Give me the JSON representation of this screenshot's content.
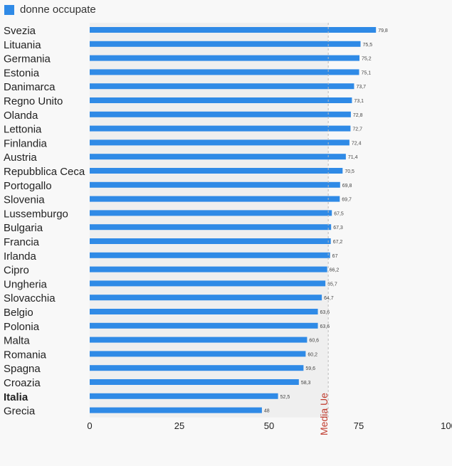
{
  "chart_data": {
    "type": "bar",
    "orientation": "horizontal",
    "series": [
      {
        "name": "donne occupate",
        "color": "#2f8ae6",
        "values": [
          79.8,
          75.5,
          75.2,
          75.1,
          73.7,
          73.1,
          72.8,
          72.7,
          72.4,
          71.4,
          70.5,
          69.8,
          69.7,
          67.5,
          67.3,
          67.2,
          67,
          66.2,
          65.7,
          64.7,
          63.6,
          63.6,
          60.6,
          60.2,
          59.6,
          58.3,
          52.5,
          48
        ],
        "value_labels": [
          "79,8",
          "75,5",
          "75,2",
          "75,1",
          "73,7",
          "73,1",
          "72,8",
          "72,7",
          "72,4",
          "71,4",
          "70,5",
          "69,8",
          "69,7",
          "67,5",
          "67,3",
          "67,2",
          "67",
          "66,2",
          "65,7",
          "64,7",
          "63,6",
          "63,6",
          "60,6",
          "60,2",
          "59,6",
          "58,3",
          "52,5",
          "48"
        ]
      }
    ],
    "categories": [
      "Svezia",
      "Lituania",
      "Germania",
      "Estonia",
      "Danimarca",
      "Regno Unito",
      "Olanda",
      "Lettonia",
      "Finlandia",
      "Austria",
      "Repubblica Ceca",
      "Portogallo",
      "Slovenia",
      "Lussemburgo",
      "Bulgaria",
      "Francia",
      "Irlanda",
      "Cipro",
      "Ungheria",
      "Slovacchia",
      "Belgio",
      "Polonia",
      "Malta",
      "Romania",
      "Spagna",
      "Croazia",
      "Italia",
      "Grecia"
    ],
    "highlighted_category": "Italia",
    "xlim": [
      0,
      100
    ],
    "xticks": [
      0,
      25,
      50,
      75,
      100
    ],
    "reference_line": {
      "value": 66.5,
      "label": "Media Ue",
      "color": "#c0392b"
    },
    "shaded_region_color": "#efefef",
    "legend_position": "top-left"
  }
}
